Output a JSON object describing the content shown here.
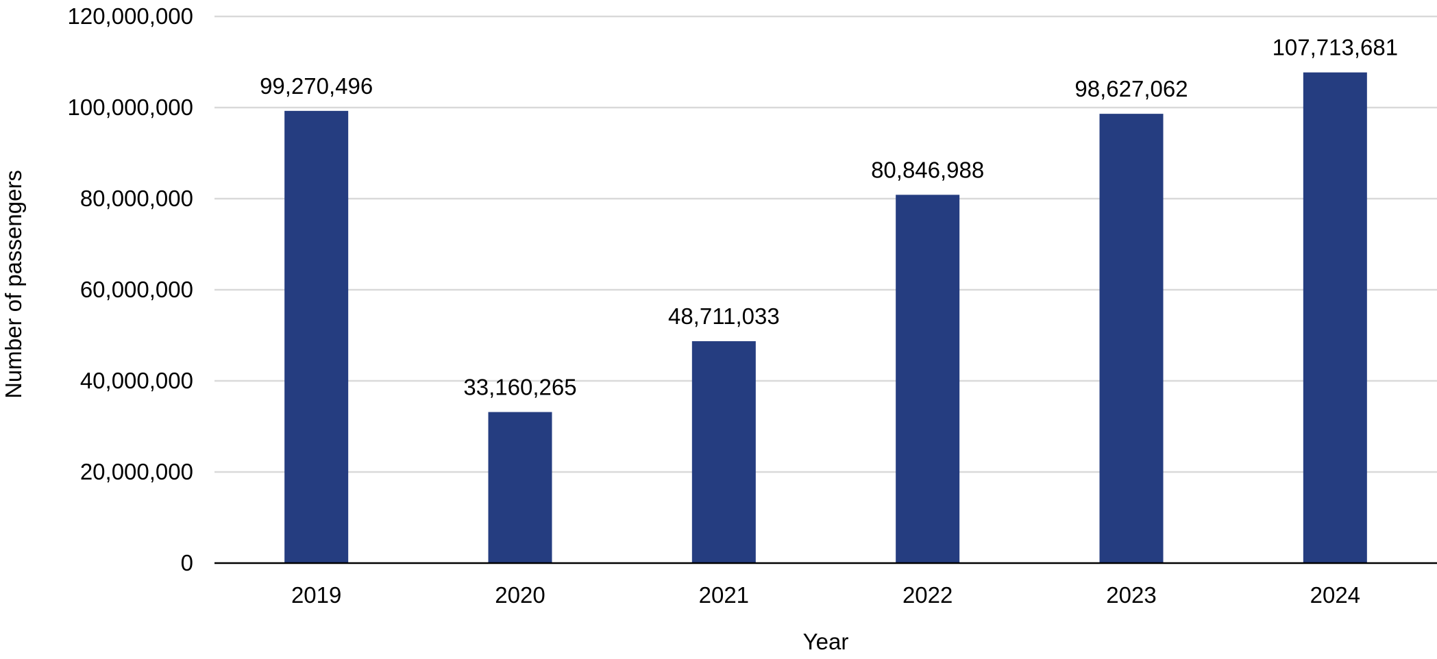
{
  "chart_data": {
    "type": "bar",
    "title": "",
    "xlabel": "Year",
    "ylabel": "Number of passengers",
    "categories": [
      "2019",
      "2020",
      "2021",
      "2022",
      "2023",
      "2024"
    ],
    "values": [
      99270496,
      33160265,
      48711033,
      80846988,
      98627062,
      107713681
    ],
    "data_labels": [
      "99,270,496",
      "33,160,265",
      "48,711,033",
      "80,846,988",
      "98,627,062",
      "107,713,681"
    ],
    "ylim": [
      0,
      120000000
    ],
    "yticks": [
      0,
      20000000,
      40000000,
      60000000,
      80000000,
      100000000,
      120000000
    ],
    "ytick_labels": [
      "0",
      "20,000,000",
      "40,000,000",
      "60,000,000",
      "80,000,000",
      "100,000,000",
      "120,000,000"
    ],
    "grid": true,
    "legend": "none",
    "colors": {
      "bar": "#253d80",
      "grid": "#d9d9d9",
      "axis": "#000000"
    }
  }
}
